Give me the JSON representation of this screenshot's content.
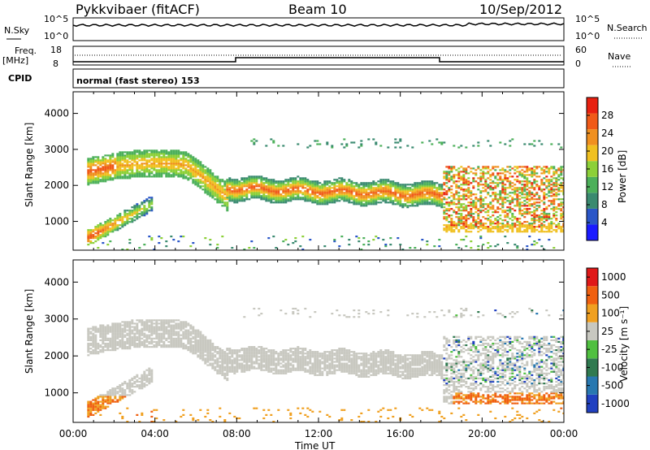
{
  "header": {
    "radar": "Pykkvibaer (fitACF)",
    "beam": "Beam 10",
    "date": "10/Sep/2012"
  },
  "strips": {
    "nsky": {
      "left_label": "N.Sky",
      "right_label": "N.Search",
      "left_ticks": [
        "10^5",
        "10^0"
      ],
      "right_ticks": [
        "10^5",
        "10^0"
      ]
    },
    "freq": {
      "left_label": "Freq.",
      "left_unit": "[MHz]",
      "right_label": "Nave",
      "left_ticks": [
        "18",
        "8"
      ],
      "right_ticks": [
        "60",
        "0"
      ]
    },
    "cpid": {
      "label": "CPID",
      "text": "normal (fast stereo) 153"
    }
  },
  "chart_data": [
    {
      "type": "heatmap",
      "quantity": "power",
      "ylabel": "Slant Range [km]",
      "ylim": [
        200,
        4600
      ],
      "yticks": [
        1000,
        2000,
        3000,
        4000
      ],
      "x_ticks": [
        "00:00",
        "04:00",
        "08:00",
        "12:00",
        "16:00",
        "20:00",
        "00:00"
      ],
      "colorbar": {
        "label": "Power [dB]",
        "range": [
          0,
          32
        ],
        "ticks": [
          4,
          8,
          12,
          16,
          20,
          24,
          28
        ],
        "colors": [
          "#1a1aff",
          "#2a56c8",
          "#3a8a70",
          "#4cb05a",
          "#8cd038",
          "#f0c020",
          "#f09020",
          "#f05a18",
          "#e82010"
        ]
      },
      "features": [
        {
          "name": "upper band",
          "from_ut": 0.5,
          "to_ut": 8,
          "range_km": [
            1800,
            2800
          ]
        },
        {
          "name": "lower arc",
          "from_ut": 0.5,
          "to_ut": 4,
          "range_km": [
            400,
            1500
          ]
        },
        {
          "name": "main band",
          "from_ut": 8,
          "to_ut": 18,
          "range_km": [
            1500,
            2200
          ]
        },
        {
          "name": "late patch",
          "from_ut": 18,
          "to_ut": 24,
          "range_km": [
            700,
            2600
          ]
        }
      ]
    },
    {
      "type": "heatmap",
      "quantity": "velocity",
      "ylabel": "Slant Range [km]",
      "ylim": [
        200,
        4600
      ],
      "yticks": [
        1000,
        2000,
        3000,
        4000
      ],
      "x_ticks": [
        "00:00",
        "04:00",
        "08:00",
        "12:00",
        "16:00",
        "20:00",
        "00:00"
      ],
      "xlabel": "Time UT",
      "colorbar": {
        "label": "Velocity [m s⁻¹]",
        "tick_labels": [
          "1000",
          "500",
          "100",
          "25",
          "-25",
          "-100",
          "-500",
          "-1000"
        ],
        "colors": [
          "#2040c0",
          "#2878b0",
          "#307a50",
          "#50c040",
          "#c8c8c0",
          "#f0a020",
          "#f06010",
          "#e01818"
        ]
      },
      "features": [
        {
          "name": "ground scatter band",
          "from_ut": 0.5,
          "to_ut": 24,
          "range_km": [
            1500,
            3000
          ],
          "color": "grey"
        },
        {
          "name": "near-range flow",
          "from_ut": 0.5,
          "to_ut": 4,
          "range_km": [
            300,
            900
          ],
          "color": "orange"
        },
        {
          "name": "late near-range flow",
          "from_ut": 19,
          "to_ut": 24,
          "range_km": [
            500,
            1000
          ],
          "color": "orange"
        }
      ]
    }
  ]
}
